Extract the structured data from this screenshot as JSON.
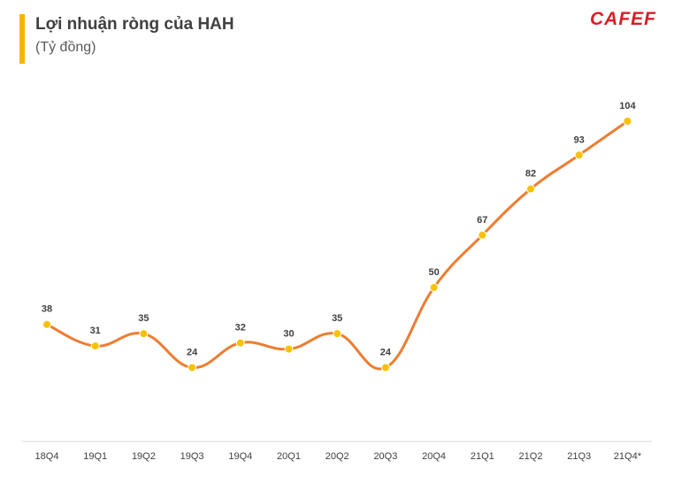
{
  "header": {
    "title": "Lợi nhuận ròng của HAH",
    "subtitle": "(Tỷ đồng)",
    "logo_text": "CAFEF"
  },
  "colors": {
    "accent": "#f7b500",
    "line": "#ed7d31",
    "marker": "#f7c100",
    "logo": "#d71f26"
  },
  "chart_data": {
    "type": "line",
    "title": "Lợi nhuận ròng của HAH",
    "subtitle": "(Tỷ đồng)",
    "xlabel": "",
    "ylabel": "",
    "categories": [
      "18Q4",
      "19Q1",
      "19Q2",
      "19Q3",
      "19Q4",
      "20Q1",
      "20Q2",
      "20Q3",
      "20Q4",
      "21Q1",
      "21Q2",
      "21Q3",
      "21Q4*"
    ],
    "series": [
      {
        "name": "",
        "values": [
          38,
          31,
          35,
          24,
          32,
          30,
          35,
          24,
          50,
          67,
          82,
          93,
          104
        ]
      }
    ],
    "ylim": [
      0,
      104
    ],
    "grid": false,
    "legend": "none",
    "data_labels": true,
    "smooth": true
  }
}
